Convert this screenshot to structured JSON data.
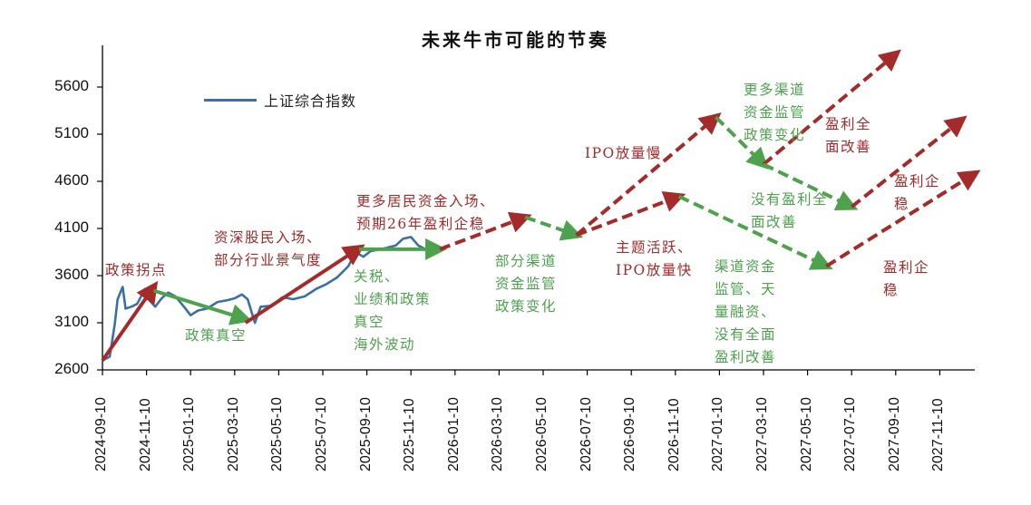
{
  "chart_data": {
    "type": "line",
    "title": "未来牛市可能的节奏",
    "xlabel": "",
    "ylabel": "",
    "ylim": [
      2600,
      6000
    ],
    "yticks": [
      2600,
      3100,
      3600,
      4100,
      4600,
      5100,
      5600
    ],
    "xticks": [
      "2024-09-10",
      "2024-11-10",
      "2025-01-10",
      "2025-03-10",
      "2025-05-10",
      "2025-07-10",
      "2025-09-10",
      "2025-11-10",
      "2026-01-10",
      "2026-03-10",
      "2026-05-10",
      "2026-07-10",
      "2026-09-10",
      "2026-11-10",
      "2027-01-10",
      "2027-03-10",
      "2027-05-10",
      "2027-07-10",
      "2027-09-10",
      "2027-11-10"
    ],
    "grid": false,
    "legend_position": "upper-left",
    "series": [
      {
        "name": "上证综合指数",
        "color": "#3a6fa8",
        "style": "solid",
        "points": [
          [
            "2024-09-10",
            2700
          ],
          [
            "2024-09-20",
            2740
          ],
          [
            "2024-09-27",
            3080
          ],
          [
            "2024-10-01",
            3350
          ],
          [
            "2024-10-08",
            3480
          ],
          [
            "2024-10-12",
            3250
          ],
          [
            "2024-10-20",
            3270
          ],
          [
            "2024-10-28",
            3300
          ],
          [
            "2024-11-08",
            3460
          ],
          [
            "2024-11-15",
            3330
          ],
          [
            "2024-11-22",
            3270
          ],
          [
            "2024-12-01",
            3360
          ],
          [
            "2024-12-10",
            3420
          ],
          [
            "2024-12-20",
            3380
          ],
          [
            "2025-01-02",
            3260
          ],
          [
            "2025-01-10",
            3180
          ],
          [
            "2025-01-20",
            3230
          ],
          [
            "2025-02-01",
            3250
          ],
          [
            "2025-02-15",
            3320
          ],
          [
            "2025-03-01",
            3340
          ],
          [
            "2025-03-10",
            3360
          ],
          [
            "2025-03-20",
            3400
          ],
          [
            "2025-03-28",
            3350
          ],
          [
            "2025-04-07",
            3100
          ],
          [
            "2025-04-15",
            3270
          ],
          [
            "2025-04-30",
            3280
          ],
          [
            "2025-05-15",
            3370
          ],
          [
            "2025-05-30",
            3350
          ],
          [
            "2025-06-15",
            3380
          ],
          [
            "2025-07-01",
            3460
          ],
          [
            "2025-07-15",
            3510
          ],
          [
            "2025-07-30",
            3580
          ],
          [
            "2025-08-15",
            3700
          ],
          [
            "2025-08-25",
            3850
          ],
          [
            "2025-09-05",
            3800
          ],
          [
            "2025-09-15",
            3860
          ],
          [
            "2025-09-30",
            3880
          ],
          [
            "2025-10-10",
            3900
          ],
          [
            "2025-10-20",
            3920
          ],
          [
            "2025-10-30",
            3990
          ],
          [
            "2025-11-10",
            4010
          ],
          [
            "2025-11-20",
            3920
          ],
          [
            "2025-11-30",
            3880
          ]
        ]
      }
    ],
    "arrows": [
      {
        "color": "#a52a2a",
        "style": "solid",
        "from": [
          "2024-09-10",
          2700
        ],
        "to": [
          "2024-11-20",
          3480
        ],
        "label": "政策拐点"
      },
      {
        "color": "#4ea24e",
        "style": "solid",
        "from": [
          "2024-11-20",
          3440
        ],
        "to": [
          "2025-03-25",
          3140
        ],
        "label": "政策真空"
      },
      {
        "color": "#a52a2a",
        "style": "solid",
        "from": [
          "2025-03-25",
          3100
        ],
        "to": [
          "2025-08-30",
          3890
        ],
        "label": "资深股民入场、部分行业景气度"
      },
      {
        "color": "#4ea24e",
        "style": "solid",
        "from": [
          "2025-08-30",
          3880
        ],
        "to": [
          "2025-12-20",
          3880
        ],
        "label": "关税、业绩和政策真空、海外波动"
      },
      {
        "color": "#a52a2a",
        "style": "dashed",
        "from": [
          "2025-12-20",
          3880
        ],
        "to": [
          "2026-04-15",
          4220
        ],
        "label": "更多居民资金入场、预期26年盈利企稳"
      },
      {
        "color": "#4ea24e",
        "style": "dashed",
        "from": [
          "2026-04-15",
          4220
        ],
        "to": [
          "2026-06-25",
          4030
        ],
        "label": "部分渠道资金监管政策变化"
      },
      {
        "color": "#a52a2a",
        "style": "dashed",
        "from": [
          "2026-06-25",
          4030
        ],
        "to": [
          "2027-01-05",
          5280
        ],
        "label": "IPO放量慢"
      },
      {
        "color": "#a52a2a",
        "style": "dashed",
        "from": [
          "2026-06-25",
          4030
        ],
        "to": [
          "2026-11-15",
          4440
        ],
        "label": "主题活跃、IPO放量快"
      },
      {
        "color": "#4ea24e",
        "style": "dashed",
        "from": [
          "2027-01-05",
          5280
        ],
        "to": [
          "2027-03-10",
          4780
        ],
        "label": "更多渠道资金监管政策变化"
      },
      {
        "color": "#a52a2a",
        "style": "dashed",
        "from": [
          "2027-03-10",
          4780
        ],
        "to": [
          "2027-09-10",
          5950
        ],
        "label": "盈利全面改善"
      },
      {
        "color": "#4ea24e",
        "style": "dashed",
        "from": [
          "2027-03-10",
          4780
        ],
        "to": [
          "2027-07-10",
          4330
        ],
        "label": "没有盈利全面改善"
      },
      {
        "color": "#a52a2a",
        "style": "dashed",
        "from": [
          "2027-07-10",
          4330
        ],
        "to": [
          "2027-12-10",
          5250
        ],
        "label": "盈利企稳"
      },
      {
        "color": "#4ea24e",
        "style": "dashed",
        "from": [
          "2026-11-15",
          4440
        ],
        "to": [
          "2027-06-05",
          3700
        ],
        "label": "渠道资金监管、天量融资、没有全面盈利改善"
      },
      {
        "color": "#a52a2a",
        "style": "dashed",
        "from": [
          "2027-06-05",
          3700
        ],
        "to": [
          "2027-12-28",
          4680
        ],
        "label": "盈利企稳"
      }
    ],
    "annotations": [
      {
        "text": "政策拐点",
        "color": "red"
      },
      {
        "text": "政策真空",
        "color": "green"
      },
      {
        "text": "资深股民入场、\n部分行业景气度",
        "color": "red"
      },
      {
        "text": "关税、\n业绩和政策\n真空\n海外波动",
        "color": "green"
      },
      {
        "text": "更多居民资金入场、\n预期26年盈利企稳",
        "color": "red"
      },
      {
        "text": "部分渠道\n资金监管\n政策变化",
        "color": "green"
      },
      {
        "text": "IPO放量慢",
        "color": "red"
      },
      {
        "text": "主题活跃、\nIPO放量快",
        "color": "red"
      },
      {
        "text": "更多渠道\n资金监管\n政策变化",
        "color": "green"
      },
      {
        "text": "盈利全\n面改善",
        "color": "red"
      },
      {
        "text": "没有盈利全\n面改善",
        "color": "green"
      },
      {
        "text": "盈利企\n稳",
        "color": "red"
      },
      {
        "text": "渠道资金\n监管、天\n量融资、\n没有全面\n盈利改善",
        "color": "green"
      },
      {
        "text": "盈利企\n稳",
        "color": "red"
      }
    ]
  },
  "colors": {
    "index_line": "#3a6fa8",
    "bull": "#a52a2a",
    "bear": "#4ea24e",
    "axis": "#000000"
  },
  "legend": {
    "label": "上证综合指数"
  }
}
